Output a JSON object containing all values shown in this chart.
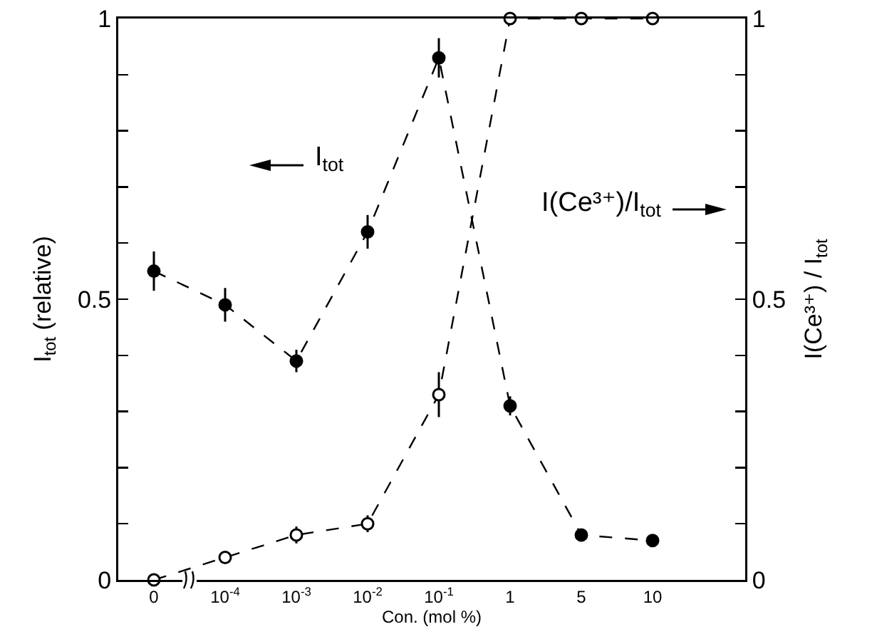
{
  "chart_data": {
    "type": "line",
    "xlabel": "Con. (mol %)",
    "ylabel": "I$_{tot}$ (relative)",
    "y2label": "I(Ce³⁺) / I$_{tot}$",
    "categories": [
      "0",
      "10$^{-4}$",
      "10$^{-3}$",
      "10$^{-2}$",
      "10$^{-1}$",
      "1",
      "5",
      "10"
    ],
    "series": [
      {
        "color": "#000000",
        "marker": "circle",
        "values": [
          0.55,
          0.49,
          0.39,
          0.62,
          0.93,
          0.31,
          0.08,
          0.07
        ],
        "errors": [
          0.035,
          0.03,
          0.02,
          0.03,
          0.035,
          0.017,
          null,
          null
        ]
      },
      {
        "color": "#ffffff",
        "marker": "circle",
        "axis": "y2",
        "values": [
          0,
          0.04,
          0.08,
          0.1,
          0.33,
          1,
          1,
          1
        ],
        "errors": [
          0.01,
          0.01,
          0.015,
          0.015,
          0.04,
          null,
          null,
          null
        ]
      }
    ],
    "ylim": [
      0,
      1
    ],
    "yticks": [
      0,
      {
        "value": 0.1,
        "label": null
      },
      {
        "value": 0.2,
        "label": null
      },
      {
        "value": 0.3,
        "label": null
      },
      {
        "value": 0.4,
        "label": null
      },
      0.5,
      {
        "value": 0.6,
        "label": null
      },
      {
        "value": 0.7,
        "label": null
      },
      {
        "value": 0.8,
        "label": null
      },
      {
        "value": 0.9,
        "label": null
      },
      1
    ],
    "y2lim": [
      0,
      1
    ],
    "y2ticks": [
      0,
      {
        "value": 0.1,
        "label": null
      },
      {
        "value": 0.2,
        "label": null
      },
      {
        "value": 0.3,
        "label": null
      },
      {
        "value": 0.4,
        "label": null
      },
      0.5,
      {
        "value": 0.6,
        "label": null
      },
      {
        "value": 0.7,
        "label": null
      },
      {
        "value": 0.8,
        "label": null
      },
      {
        "value": 0.9,
        "label": null
      },
      1
    ],
    "annotations": [
      "I$_{tot}$",
      "I(Ce³⁺)/I$_{tot}$"
    ],
    "grid": false,
    "line_style": "dashed"
  }
}
